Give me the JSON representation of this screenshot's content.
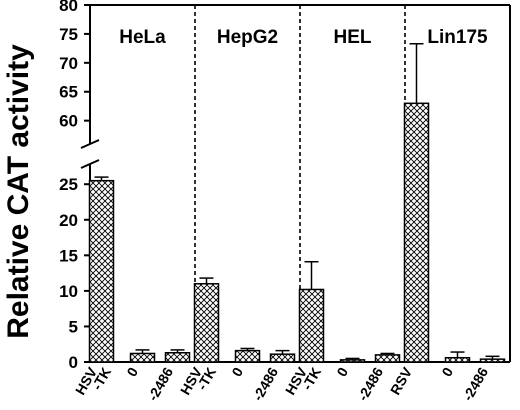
{
  "chart_data": {
    "type": "bar",
    "ylabel": "Relative CAT activity",
    "y_axis_break": {
      "lower_range": [
        0,
        27
      ],
      "upper_range": [
        57,
        80
      ]
    },
    "y_ticks_lower": [
      "0",
      "5",
      "10",
      "15",
      "20",
      "25"
    ],
    "y_ticks_upper": [
      "60",
      "65",
      "70",
      "75",
      "80"
    ],
    "error_bars": true,
    "fill_pattern": "crosshatch",
    "panels": [
      {
        "title": "HeLa",
        "categories": [
          [
            "HSV",
            "-TK"
          ],
          [
            "0"
          ],
          [
            "-2486"
          ]
        ],
        "values": [
          25.5,
          1.2,
          1.3
        ],
        "errors": [
          0.5,
          0.5,
          0.4
        ]
      },
      {
        "title": "HepG2",
        "categories": [
          [
            "HSV",
            "-TK"
          ],
          [
            "0"
          ],
          [
            "-2486"
          ]
        ],
        "values": [
          11.0,
          1.6,
          1.1
        ],
        "errors": [
          0.8,
          0.3,
          0.5
        ]
      },
      {
        "title": "HEL",
        "categories": [
          [
            "HSV",
            "-TK"
          ],
          [
            "0"
          ],
          [
            "-2486"
          ]
        ],
        "values": [
          10.2,
          0.3,
          1.0
        ],
        "errors": [
          3.9,
          0.2,
          0.2
        ]
      },
      {
        "title": "Lin175",
        "categories": [
          [
            "RSV"
          ],
          [
            "0"
          ],
          [
            "-2486"
          ]
        ],
        "values": [
          63.0,
          0.6,
          0.4
        ],
        "errors": [
          10.3,
          0.8,
          0.4
        ]
      }
    ]
  }
}
